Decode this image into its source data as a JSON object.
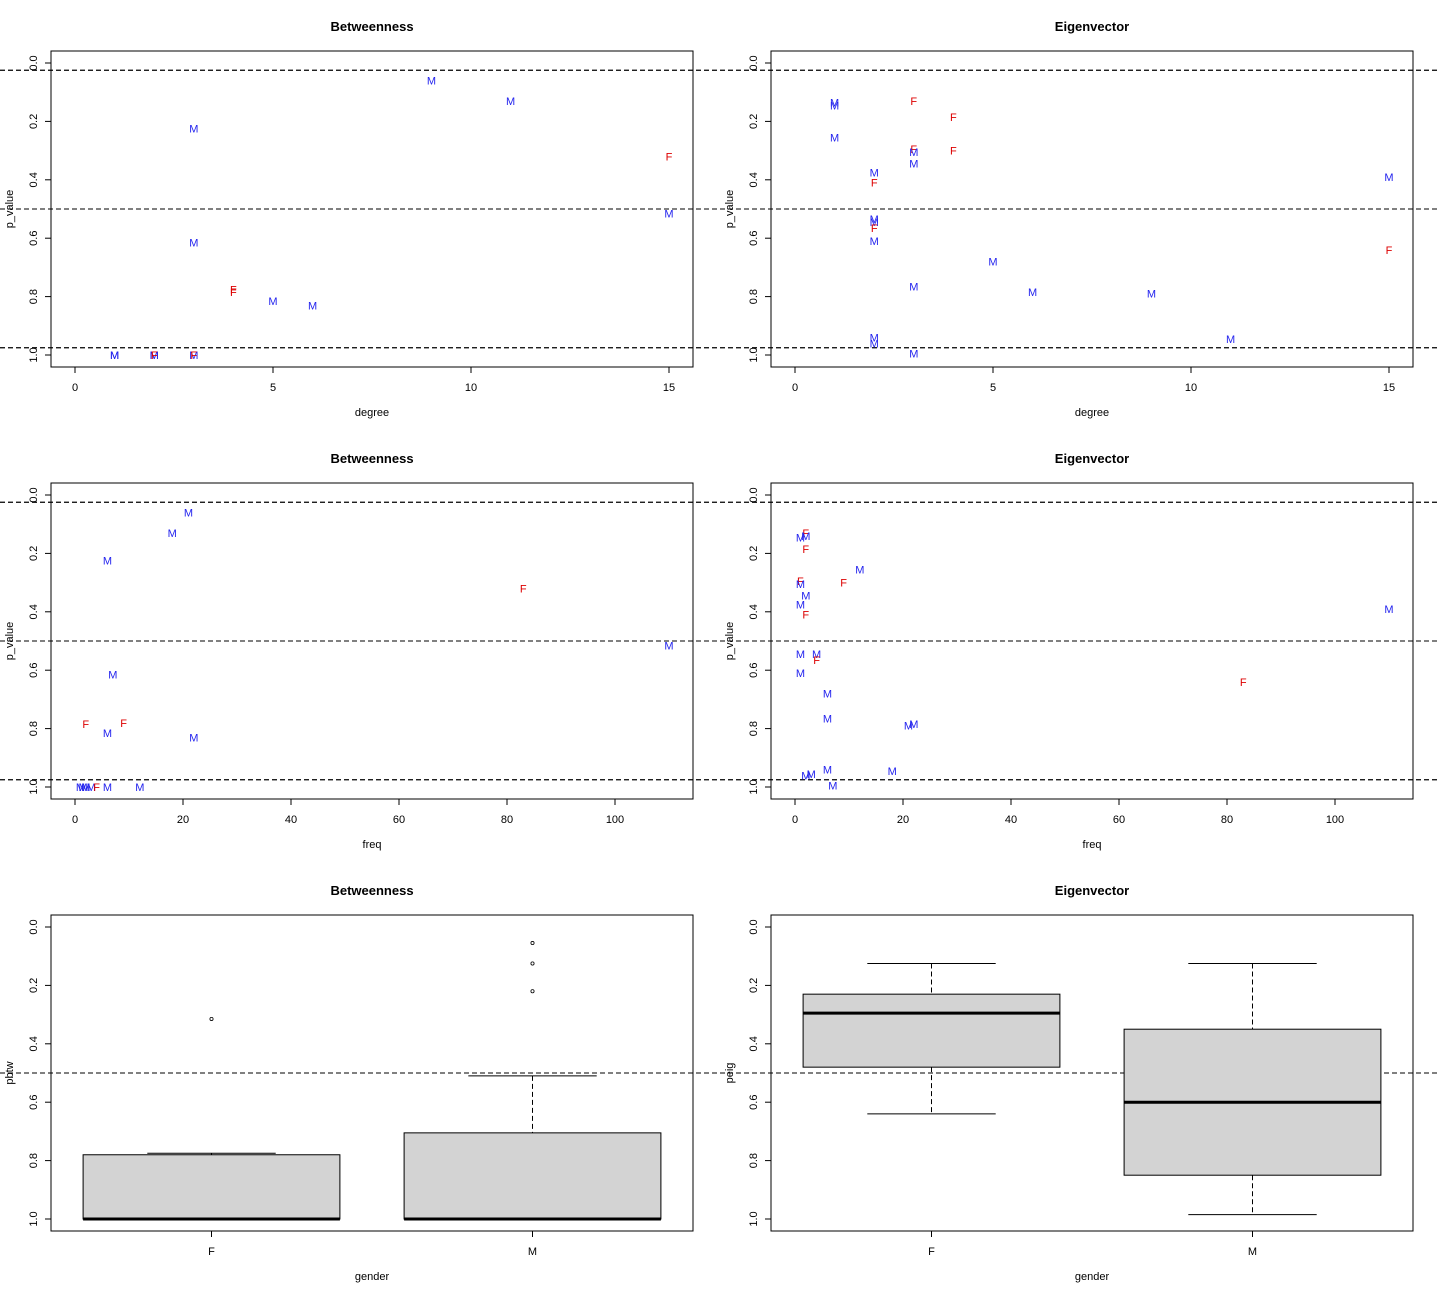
{
  "colors": {
    "F": "#dd0000",
    "M": "#2222ee",
    "box_fill": "#d3d3d3"
  },
  "chart_data": [
    {
      "type": "scatter",
      "title": "Betweenness",
      "xlabel": "degree",
      "ylabel": "p_value",
      "xlim": [
        0,
        15
      ],
      "ylim": [
        0,
        1
      ],
      "y_reversed": true,
      "xticks": [
        0,
        5,
        10,
        15
      ],
      "yticks": [
        0.0,
        0.2,
        0.4,
        0.6,
        0.8,
        1.0
      ],
      "hlines": [
        0.025,
        0.5,
        0.975
      ],
      "points": [
        {
          "x": 9,
          "y": 0.06,
          "label": "M"
        },
        {
          "x": 11,
          "y": 0.13,
          "label": "M"
        },
        {
          "x": 3,
          "y": 0.225,
          "label": "M"
        },
        {
          "x": 15,
          "y": 0.32,
          "label": "F"
        },
        {
          "x": 15,
          "y": 0.515,
          "label": "M"
        },
        {
          "x": 3,
          "y": 0.615,
          "label": "M"
        },
        {
          "x": 4,
          "y": 0.775,
          "label": "F"
        },
        {
          "x": 4,
          "y": 0.785,
          "label": "F"
        },
        {
          "x": 5,
          "y": 0.815,
          "label": "M"
        },
        {
          "x": 6,
          "y": 0.83,
          "label": "M"
        },
        {
          "x": 1,
          "y": 1.0,
          "label": "M"
        },
        {
          "x": 1,
          "y": 1.0,
          "label": "M"
        },
        {
          "x": 2,
          "y": 1.0,
          "label": "M"
        },
        {
          "x": 2,
          "y": 1.0,
          "label": "M"
        },
        {
          "x": 2,
          "y": 1.0,
          "label": "F"
        },
        {
          "x": 3,
          "y": 1.0,
          "label": "M"
        },
        {
          "x": 3,
          "y": 1.0,
          "label": "F"
        }
      ]
    },
    {
      "type": "scatter",
      "title": "Eigenvector",
      "xlabel": "degree",
      "ylabel": "p_value",
      "xlim": [
        0,
        15
      ],
      "ylim": [
        0,
        1
      ],
      "y_reversed": true,
      "xticks": [
        0,
        5,
        10,
        15
      ],
      "yticks": [
        0.0,
        0.2,
        0.4,
        0.6,
        0.8,
        1.0
      ],
      "hlines": [
        0.025,
        0.5,
        0.975
      ],
      "points": [
        {
          "x": 3,
          "y": 0.13,
          "label": "F"
        },
        {
          "x": 1,
          "y": 0.135,
          "label": "M"
        },
        {
          "x": 1,
          "y": 0.145,
          "label": "M"
        },
        {
          "x": 4,
          "y": 0.185,
          "label": "F"
        },
        {
          "x": 1,
          "y": 0.255,
          "label": "M"
        },
        {
          "x": 3,
          "y": 0.295,
          "label": "F"
        },
        {
          "x": 4,
          "y": 0.3,
          "label": "F"
        },
        {
          "x": 3,
          "y": 0.305,
          "label": "M"
        },
        {
          "x": 3,
          "y": 0.345,
          "label": "M"
        },
        {
          "x": 2,
          "y": 0.375,
          "label": "M"
        },
        {
          "x": 15,
          "y": 0.39,
          "label": "M"
        },
        {
          "x": 2,
          "y": 0.41,
          "label": "F"
        },
        {
          "x": 2,
          "y": 0.535,
          "label": "M"
        },
        {
          "x": 2,
          "y": 0.545,
          "label": "M"
        },
        {
          "x": 2,
          "y": 0.565,
          "label": "F"
        },
        {
          "x": 2,
          "y": 0.61,
          "label": "M"
        },
        {
          "x": 15,
          "y": 0.64,
          "label": "F"
        },
        {
          "x": 5,
          "y": 0.68,
          "label": "M"
        },
        {
          "x": 3,
          "y": 0.765,
          "label": "M"
        },
        {
          "x": 6,
          "y": 0.785,
          "label": "M"
        },
        {
          "x": 9,
          "y": 0.79,
          "label": "M"
        },
        {
          "x": 11,
          "y": 0.945,
          "label": "M"
        },
        {
          "x": 2,
          "y": 0.94,
          "label": "M"
        },
        {
          "x": 2,
          "y": 0.96,
          "label": "M"
        },
        {
          "x": 3,
          "y": 0.995,
          "label": "M"
        }
      ]
    },
    {
      "type": "scatter",
      "title": "Betweenness",
      "xlabel": "freq",
      "ylabel": "p_value",
      "xlim": [
        0,
        110
      ],
      "ylim": [
        0,
        1
      ],
      "y_reversed": true,
      "xticks": [
        0,
        20,
        40,
        60,
        80,
        100
      ],
      "yticks": [
        0.0,
        0.2,
        0.4,
        0.6,
        0.8,
        1.0
      ],
      "hlines": [
        0.025,
        0.5,
        0.975
      ],
      "points": [
        {
          "x": 21,
          "y": 0.06,
          "label": "M"
        },
        {
          "x": 18,
          "y": 0.13,
          "label": "M"
        },
        {
          "x": 6,
          "y": 0.225,
          "label": "M"
        },
        {
          "x": 83,
          "y": 0.32,
          "label": "F"
        },
        {
          "x": 110,
          "y": 0.515,
          "label": "M"
        },
        {
          "x": 7,
          "y": 0.615,
          "label": "M"
        },
        {
          "x": 2,
          "y": 0.785,
          "label": "F"
        },
        {
          "x": 9,
          "y": 0.78,
          "label": "F"
        },
        {
          "x": 6,
          "y": 0.815,
          "label": "M"
        },
        {
          "x": 22,
          "y": 0.83,
          "label": "M"
        },
        {
          "x": 1,
          "y": 1.0,
          "label": "M"
        },
        {
          "x": 1.5,
          "y": 1.0,
          "label": "M"
        },
        {
          "x": 2,
          "y": 1.0,
          "label": "M"
        },
        {
          "x": 3,
          "y": 1.0,
          "label": "M"
        },
        {
          "x": 4,
          "y": 1.0,
          "label": "F"
        },
        {
          "x": 6,
          "y": 1.0,
          "label": "M"
        },
        {
          "x": 12,
          "y": 1.0,
          "label": "M"
        }
      ]
    },
    {
      "type": "scatter",
      "title": "Eigenvector",
      "xlabel": "freq",
      "ylabel": "p_value",
      "xlim": [
        0,
        110
      ],
      "ylim": [
        0,
        1
      ],
      "y_reversed": true,
      "xticks": [
        0,
        20,
        40,
        60,
        80,
        100
      ],
      "yticks": [
        0.0,
        0.2,
        0.4,
        0.6,
        0.8,
        1.0
      ],
      "hlines": [
        0.025,
        0.5,
        0.975
      ],
      "points": [
        {
          "x": 2,
          "y": 0.13,
          "label": "F"
        },
        {
          "x": 1,
          "y": 0.145,
          "label": "M"
        },
        {
          "x": 2,
          "y": 0.14,
          "label": "M"
        },
        {
          "x": 2,
          "y": 0.185,
          "label": "F"
        },
        {
          "x": 12,
          "y": 0.255,
          "label": "M"
        },
        {
          "x": 1,
          "y": 0.295,
          "label": "F"
        },
        {
          "x": 9,
          "y": 0.3,
          "label": "F"
        },
        {
          "x": 1,
          "y": 0.305,
          "label": "M"
        },
        {
          "x": 2,
          "y": 0.345,
          "label": "M"
        },
        {
          "x": 1,
          "y": 0.375,
          "label": "M"
        },
        {
          "x": 110,
          "y": 0.39,
          "label": "M"
        },
        {
          "x": 2,
          "y": 0.41,
          "label": "F"
        },
        {
          "x": 1,
          "y": 0.545,
          "label": "M"
        },
        {
          "x": 4,
          "y": 0.545,
          "label": "M"
        },
        {
          "x": 4,
          "y": 0.565,
          "label": "F"
        },
        {
          "x": 1,
          "y": 0.61,
          "label": "M"
        },
        {
          "x": 83,
          "y": 0.64,
          "label": "F"
        },
        {
          "x": 6,
          "y": 0.68,
          "label": "M"
        },
        {
          "x": 6,
          "y": 0.765,
          "label": "M"
        },
        {
          "x": 21,
          "y": 0.79,
          "label": "M"
        },
        {
          "x": 22,
          "y": 0.785,
          "label": "M"
        },
        {
          "x": 18,
          "y": 0.945,
          "label": "M"
        },
        {
          "x": 6,
          "y": 0.94,
          "label": "M"
        },
        {
          "x": 2,
          "y": 0.96,
          "label": "M"
        },
        {
          "x": 3,
          "y": 0.955,
          "label": "M"
        },
        {
          "x": 7,
          "y": 0.995,
          "label": "M"
        }
      ]
    },
    {
      "type": "box",
      "title": "Betweenness",
      "xlabel": "gender",
      "ylabel": "pbtw",
      "ylim": [
        0,
        1
      ],
      "y_reversed": true,
      "yticks": [
        0.0,
        0.2,
        0.4,
        0.6,
        0.8,
        1.0
      ],
      "hlines": [
        0.5
      ],
      "categories": [
        "F",
        "M"
      ],
      "boxes": [
        {
          "name": "F",
          "whisker_low": 0.775,
          "q1": 0.78,
          "median": 1.0,
          "q3": 1.0,
          "whisker_high": 1.0,
          "outliers": [
            0.315
          ]
        },
        {
          "name": "M",
          "whisker_low": 0.51,
          "q1": 0.705,
          "median": 1.0,
          "q3": 1.0,
          "whisker_high": 1.0,
          "outliers": [
            0.055,
            0.125,
            0.22
          ]
        }
      ]
    },
    {
      "type": "box",
      "title": "Eigenvector",
      "xlabel": "gender",
      "ylabel": "peig",
      "ylim": [
        0,
        1
      ],
      "y_reversed": true,
      "yticks": [
        0.0,
        0.2,
        0.4,
        0.6,
        0.8,
        1.0
      ],
      "hlines": [
        0.5
      ],
      "categories": [
        "F",
        "M"
      ],
      "boxes": [
        {
          "name": "F",
          "whisker_low": 0.125,
          "q1": 0.23,
          "median": 0.295,
          "q3": 0.48,
          "whisker_high": 0.64,
          "outliers": []
        },
        {
          "name": "M",
          "whisker_low": 0.125,
          "q1": 0.35,
          "median": 0.6,
          "q3": 0.85,
          "whisker_high": 0.985,
          "outliers": []
        }
      ]
    }
  ]
}
